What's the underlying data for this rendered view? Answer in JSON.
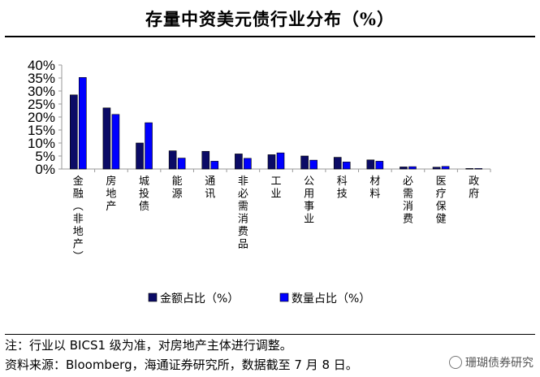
{
  "title": "存量中资美元债行业分布（%）",
  "footer": {
    "note": "注：行业以 BICS1 级为准，对房地产主体进行调整。",
    "source": "资料来源：Bloomberg，海通证券研究所，数据截至 7 月 8 日。"
  },
  "watermark": "珊瑚债券研究",
  "colors": {
    "amount": "#0b0b66",
    "count": "#0000ff",
    "axis": "#999999"
  },
  "chart_data": {
    "type": "bar",
    "title": "存量中资美元债行业分布（%）",
    "xlabel": "",
    "ylabel": "",
    "ylim": [
      0,
      40
    ],
    "yticks": [
      "0%",
      "5%",
      "10%",
      "15%",
      "20%",
      "25%",
      "30%",
      "35%",
      "40%"
    ],
    "grid": false,
    "legend_position": "bottom",
    "categories": [
      "金融（非地产）",
      "房地产",
      "城投债",
      "能源",
      "通讯",
      "非必需消费品",
      "工业",
      "公用事业",
      "科技",
      "材料",
      "必需消费",
      "医疗保健",
      "政府"
    ],
    "series": [
      {
        "name": "金额占比（%）",
        "color": "#0b0b66",
        "values": [
          28.5,
          23.5,
          10,
          7,
          6.8,
          5.8,
          5.5,
          5,
          4.5,
          3.5,
          0.8,
          0.7,
          0.2
        ]
      },
      {
        "name": "数量占比（%）",
        "color": "#0000ff",
        "values": [
          35.2,
          21,
          17.8,
          4.2,
          3,
          4.1,
          6.2,
          3.4,
          2.7,
          3,
          0.9,
          1,
          0.2
        ]
      }
    ]
  }
}
